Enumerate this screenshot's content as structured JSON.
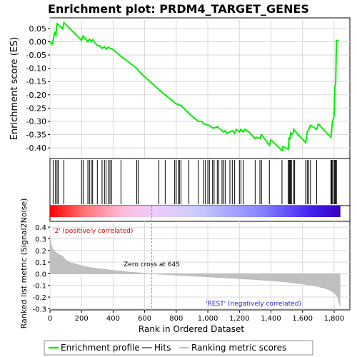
{
  "chart_data": {
    "type": "line",
    "title": "Enrichment plot: PRDM4_TARGET_GENES",
    "xlabel": "Rank in Ordered Dataset",
    "xlim": [
      0,
      1900
    ],
    "x_ticks": [
      0,
      200,
      400,
      600,
      800,
      1000,
      1200,
      1400,
      1600,
      1800
    ],
    "x_tick_labels": [
      "0",
      "200",
      "400",
      "600",
      "800",
      "1,000",
      "1,200",
      "1,400",
      "1,600",
      "1,800"
    ],
    "grid": true,
    "legend_position": "bottom",
    "enrichment_panel": {
      "ylabel": "Enrichment score (ES)",
      "ylim": [
        -0.44,
        0.09
      ],
      "y_ticks": [
        0.05,
        0.0,
        -0.05,
        -0.1,
        -0.15,
        -0.2,
        -0.25,
        -0.3,
        -0.35,
        -0.4
      ],
      "y_tick_labels": [
        "0.05",
        "0.00",
        "-0.05",
        "-0.10",
        "-0.15",
        "-0.20",
        "-0.25",
        "-0.30",
        "-0.35",
        "-0.40"
      ],
      "line_color": "#00ee00",
      "series": [
        {
          "name": "Enrichment profile",
          "x": [
            0,
            12,
            18,
            30,
            38,
            45,
            52,
            80,
            88,
            95,
            200,
            210,
            240,
            250,
            262,
            270,
            300,
            315,
            330,
            345,
            355,
            370,
            380,
            390,
            450,
            460,
            550,
            560,
            690,
            700,
            790,
            800,
            815,
            820,
            830,
            880,
            900,
            940,
            960,
            975,
            985,
            1000,
            1010,
            1030,
            1040,
            1060,
            1070,
            1090,
            1100,
            1110,
            1120,
            1140,
            1155,
            1170,
            1180,
            1200,
            1210,
            1225,
            1235,
            1260,
            1300,
            1310,
            1330,
            1340,
            1390,
            1400,
            1470,
            1475,
            1510,
            1515,
            1520,
            1525,
            1530,
            1540,
            1545,
            1550,
            1620,
            1630,
            1640,
            1650,
            1690,
            1700,
            1780,
            1785,
            1790,
            1795,
            1800,
            1805,
            1810,
            1815,
            1830
          ],
          "y": [
            0.0,
            -0.01,
            0.0,
            0.035,
            0.025,
            0.068,
            0.065,
            0.048,
            0.072,
            0.068,
            0.005,
            0.022,
            0.0,
            0.01,
            0.0,
            0.008,
            -0.015,
            -0.015,
            -0.025,
            -0.018,
            -0.028,
            -0.02,
            -0.025,
            -0.025,
            -0.055,
            -0.06,
            -0.1,
            -0.11,
            -0.18,
            -0.185,
            -0.23,
            -0.235,
            -0.235,
            -0.24,
            -0.24,
            -0.27,
            -0.28,
            -0.3,
            -0.3,
            -0.31,
            -0.31,
            -0.315,
            -0.315,
            -0.325,
            -0.325,
            -0.32,
            -0.325,
            -0.335,
            -0.34,
            -0.335,
            -0.345,
            -0.34,
            -0.335,
            -0.345,
            -0.33,
            -0.34,
            -0.33,
            -0.34,
            -0.33,
            -0.34,
            -0.365,
            -0.36,
            -0.365,
            -0.35,
            -0.39,
            -0.37,
            -0.41,
            -0.395,
            -0.405,
            -0.36,
            -0.37,
            -0.34,
            -0.35,
            -0.345,
            -0.33,
            -0.335,
            -0.38,
            -0.34,
            -0.33,
            -0.315,
            -0.33,
            -0.31,
            -0.36,
            -0.33,
            -0.3,
            -0.29,
            -0.28,
            -0.17,
            -0.16,
            0.005,
            0.005
          ]
        }
      ]
    },
    "hits_panel": {
      "series_name": "Hits",
      "hits": [
        20,
        35,
        45,
        52,
        88,
        200,
        210,
        240,
        250,
        262,
        270,
        300,
        330,
        345,
        355,
        370,
        380,
        390,
        450,
        550,
        560,
        690,
        730,
        790,
        800,
        815,
        820,
        830,
        880,
        940,
        975,
        985,
        1000,
        1010,
        1030,
        1040,
        1060,
        1070,
        1090,
        1100,
        1110,
        1140,
        1155,
        1170,
        1200,
        1210,
        1225,
        1300,
        1330,
        1340,
        1390,
        1470,
        1510,
        1515,
        1520,
        1525,
        1530,
        1545,
        1550,
        1620,
        1630,
        1640,
        1650,
        1690,
        1780,
        1785,
        1790,
        1800,
        1805,
        1810,
        1815
      ]
    },
    "ranking_bar": {
      "total_genes": 1840,
      "zero_cross": 645
    },
    "ranked_metric_panel": {
      "ylabel": "Ranked list metric (Signal2Noise)",
      "ylim": [
        -0.31,
        0.45
      ],
      "y_ticks": [
        0.4,
        0.3,
        0.2,
        0.1,
        0.0,
        -0.1,
        -0.2,
        -0.3
      ],
      "y_tick_labels": [
        "0.4",
        "0.3",
        "0.2",
        "0.1",
        "0.0",
        "-0.1",
        "-0.2",
        "-0.3"
      ],
      "series_name": "Ranking metric scores",
      "x": [
        0,
        3,
        8,
        15,
        25,
        40,
        60,
        80,
        100,
        130,
        160,
        200,
        250,
        300,
        350,
        400,
        450,
        500,
        550,
        600,
        645,
        700,
        800,
        900,
        1000,
        1100,
        1200,
        1300,
        1400,
        1500,
        1600,
        1650,
        1700,
        1740,
        1770,
        1790,
        1805,
        1815,
        1822,
        1828,
        1833,
        1838
      ],
      "y": [
        0.33,
        0.29,
        0.25,
        0.22,
        0.2,
        0.18,
        0.165,
        0.15,
        0.12,
        0.095,
        0.085,
        0.07,
        0.055,
        0.045,
        0.038,
        0.03,
        0.022,
        0.015,
        0.01,
        0.005,
        0.0,
        -0.005,
        -0.012,
        -0.02,
        -0.027,
        -0.035,
        -0.043,
        -0.05,
        -0.06,
        -0.072,
        -0.088,
        -0.098,
        -0.11,
        -0.125,
        -0.14,
        -0.155,
        -0.17,
        -0.185,
        -0.2,
        -0.23,
        -0.26,
        -0.28
      ]
    },
    "annotations": {
      "positive_label": "'2' (positively correlated)",
      "zero_cross_label": "Zero cross at 645",
      "negative_label": "'REST' (negatively correlated)"
    },
    "legend": [
      "Enrichment profile",
      "Hits",
      "Ranking metric scores"
    ]
  }
}
